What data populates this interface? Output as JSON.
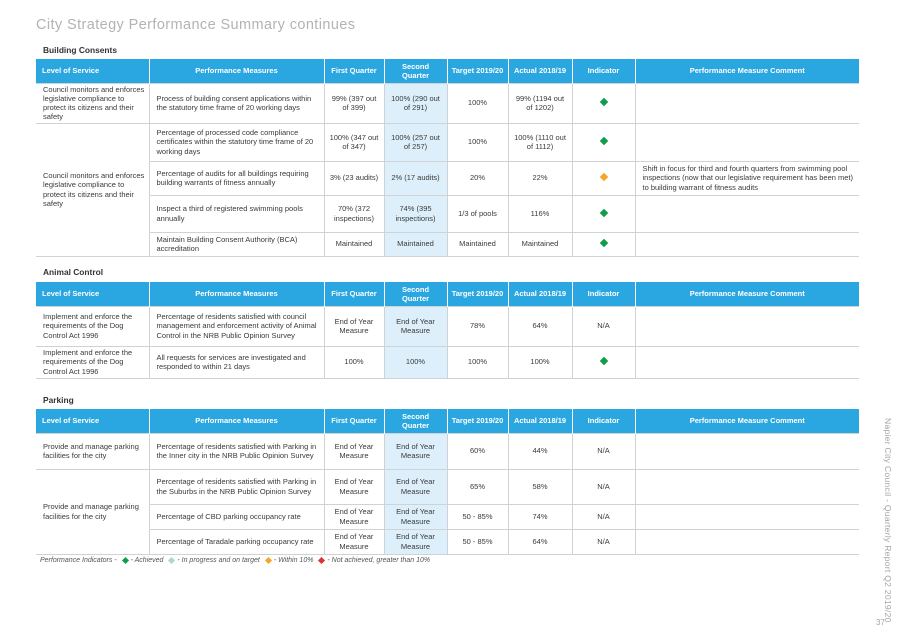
{
  "page": {
    "title": "City Strategy Performance Summary continues",
    "side_text": "Napier City Council - Quarterly Report Q2 2019/20",
    "page_number": "37"
  },
  "headers": {
    "level_of_service": "Level of Service",
    "performance_measures": "Performance Measures",
    "first_quarter": "First Quarter",
    "second_quarter": "Second Quarter",
    "target": "Target 2019/20",
    "actual": "Actual 2018/19",
    "indicator": "Indicator",
    "comment": "Performance Measure Comment"
  },
  "building": {
    "title": "Building Consents",
    "rows": [
      {
        "level": "Council monitors and enforces legislative compliance to protect its citizens and their safety",
        "measure": "Process of building consent applications within the statutory time frame of 20 working days",
        "q1": "99% (397 out of 399)",
        "q2": "100% (290 out of 291)",
        "target": "100%",
        "actual": "99% (1194 out of 1202)",
        "indicator": "green",
        "comment": ""
      },
      {
        "level": "Council monitors and enforces legislative compliance to protect its citizens and their safety",
        "measure": "Percentage of processed code compliance certificates within the statutory time frame of 20 working days",
        "q1": "100% (347 out of 347)",
        "q2": "100% (257 out of 257)",
        "target": "100%",
        "actual": "100% (1110 out of 1112)",
        "indicator": "green",
        "comment": ""
      },
      {
        "measure": "Percentage of audits for all buildings requiring building warrants of fitness annually",
        "q1": "3% (23 audits)",
        "q2": "2% (17 audits)",
        "target": "20%",
        "actual": "22%",
        "indicator": "orange",
        "comment": "Shift in focus for third and fourth quarters from swimming pool inspections (now that our legislative requirement has been met) to building warrant of fitness audits"
      },
      {
        "measure": "Inspect a third of registered swimming pools annually",
        "q1": "70% (372 inspections)",
        "q2": "74% (395 inspections)",
        "target": "1/3 of pools",
        "actual": "116%",
        "indicator": "green",
        "comment": ""
      },
      {
        "measure": "Maintain Building Consent Authority (BCA) accreditation",
        "q1": "Maintained",
        "q2": "Maintained",
        "target": "Maintained",
        "actual": "Maintained",
        "indicator": "green",
        "comment": ""
      }
    ]
  },
  "animal": {
    "title": "Animal Control",
    "rows": [
      {
        "level": "Implement and enforce the requirements of the Dog Control Act 1996",
        "measure": "Percentage of residents satisfied with council management and enforcement activity of Animal Control in the NRB Public Opinion Survey",
        "q1": "End of Year Measure",
        "q2": "End of Year Measure",
        "target": "78%",
        "actual": "64%",
        "indicator": "N/A",
        "comment": ""
      },
      {
        "level": "Implement and enforce the requirements of the Dog Control Act 1996",
        "measure": "All requests for services are investigated and responded to within 21 days",
        "q1": "100%",
        "q2": "100%",
        "target": "100%",
        "actual": "100%",
        "indicator": "green",
        "comment": ""
      }
    ]
  },
  "parking": {
    "title": "Parking",
    "rows": [
      {
        "level": "Provide and manage parking facilities for the city",
        "measure": "Percentage of residents satisfied with Parking in the Inner city in the NRB Public Opinion Survey",
        "q1": "End of Year Measure",
        "q2": "End of Year Measure",
        "target": "60%",
        "actual": "44%",
        "indicator": "N/A",
        "comment": ""
      },
      {
        "level": "Provide and manage parking facilities for the city",
        "measure": "Percentage of residents satisfied with Parking in the Suburbs in the NRB Public Opinion Survey",
        "q1": "End of Year Measure",
        "q2": "End of Year Measure",
        "target": "65%",
        "actual": "58%",
        "indicator": "N/A",
        "comment": ""
      },
      {
        "measure": "Percentage of CBD parking occupancy rate",
        "q1": "End of Year Measure",
        "q2": "End of Year Measure",
        "target": "50 - 85%",
        "actual": "74%",
        "indicator": "N/A",
        "comment": ""
      },
      {
        "measure": "Percentage of Taradale parking occupancy rate",
        "q1": "End of Year Measure",
        "q2": "End of Year Measure",
        "target": "50 - 85%",
        "actual": "64%",
        "indicator": "N/A",
        "comment": ""
      }
    ]
  },
  "legend": {
    "prefix": "Performance Indicators -",
    "achieved": "- Achieved",
    "in_progress": "- In progress and on target",
    "within": "- Within 10%",
    "not_achieved": "- Not achieved, greater than 10%"
  },
  "colors": {
    "accent": "#2aa6e0",
    "achieved": "#0f9d4a",
    "in_progress": "#a8dcc0",
    "within": "#f5a623",
    "not_achieved": "#e0312d"
  }
}
